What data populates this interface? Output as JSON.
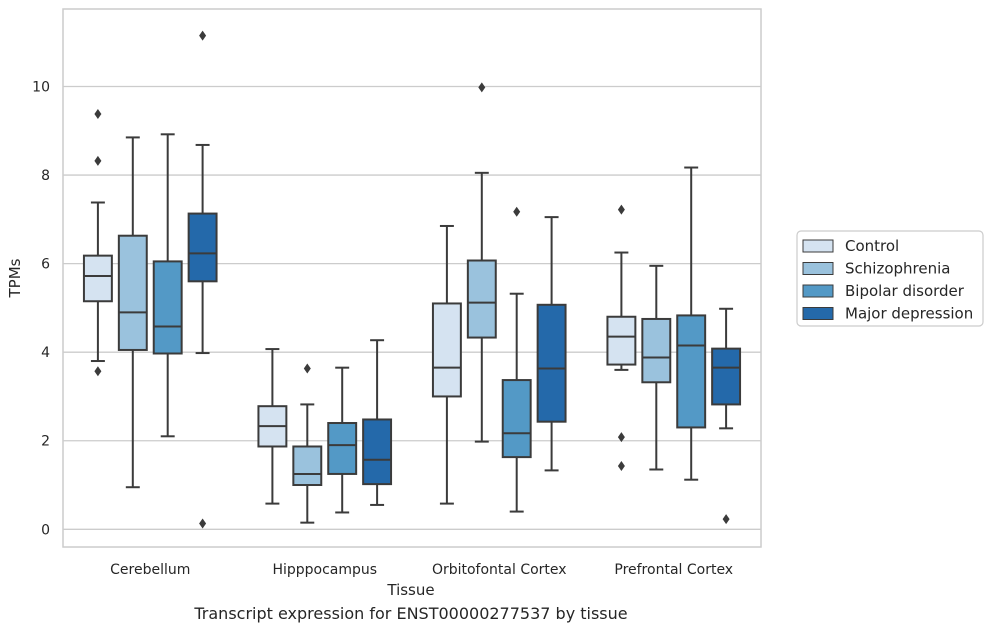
{
  "caption": "Transcript expression for ENST00000277537 by tissue",
  "chart_data": {
    "type": "box",
    "xlabel": "Tissue",
    "ylabel": "TPMs",
    "ylim": [
      -0.4,
      11.75
    ],
    "yticks": [
      0,
      2,
      4,
      6,
      8,
      10
    ],
    "grid": "horizontal",
    "legend_position": "right",
    "categories": [
      "Cerebellum",
      "Hipppocampus",
      "Orbitofontal Cortex",
      "Prefrontal Cortex"
    ],
    "series": [
      {
        "name": "Control",
        "color": "#d5e3f1",
        "boxes": [
          {
            "min": 3.8,
            "q1": 5.15,
            "median": 5.72,
            "q3": 6.18,
            "max": 7.38,
            "outliers": [
              9.38,
              8.32,
              3.57
            ]
          },
          {
            "min": 0.58,
            "q1": 1.87,
            "median": 2.33,
            "q3": 2.78,
            "max": 4.07,
            "outliers": []
          },
          {
            "min": 0.58,
            "q1": 3.0,
            "median": 3.65,
            "q3": 5.1,
            "max": 6.85,
            "outliers": []
          },
          {
            "min": 3.6,
            "q1": 3.72,
            "median": 4.35,
            "q3": 4.8,
            "max": 6.25,
            "outliers": [
              7.22,
              2.08,
              1.43
            ]
          }
        ]
      },
      {
        "name": "Schizophrenia",
        "color": "#9ac2dd",
        "boxes": [
          {
            "min": 0.95,
            "q1": 4.05,
            "median": 4.9,
            "q3": 6.63,
            "max": 8.85,
            "outliers": []
          },
          {
            "min": 0.15,
            "q1": 1.0,
            "median": 1.25,
            "q3": 1.87,
            "max": 2.82,
            "outliers": [
              3.63
            ]
          },
          {
            "min": 1.98,
            "q1": 4.33,
            "median": 5.12,
            "q3": 6.07,
            "max": 8.05,
            "outliers": [
              9.98
            ]
          },
          {
            "min": 1.35,
            "q1": 3.32,
            "median": 3.88,
            "q3": 4.75,
            "max": 5.95,
            "outliers": []
          }
        ]
      },
      {
        "name": "Bipolar disorder",
        "color": "#5399c6",
        "boxes": [
          {
            "min": 2.1,
            "q1": 3.97,
            "median": 4.58,
            "q3": 6.05,
            "max": 8.92,
            "outliers": []
          },
          {
            "min": 0.38,
            "q1": 1.25,
            "median": 1.9,
            "q3": 2.4,
            "max": 3.65,
            "outliers": []
          },
          {
            "min": 0.4,
            "q1": 1.63,
            "median": 2.17,
            "q3": 3.37,
            "max": 5.32,
            "outliers": [
              7.17
            ]
          },
          {
            "min": 1.12,
            "q1": 2.3,
            "median": 4.15,
            "q3": 4.83,
            "max": 8.17,
            "outliers": []
          }
        ]
      },
      {
        "name": "Major depression",
        "color": "#2469aa",
        "boxes": [
          {
            "min": 3.98,
            "q1": 5.6,
            "median": 6.23,
            "q3": 7.13,
            "max": 8.68,
            "outliers": [
              11.15,
              0.13
            ]
          },
          {
            "min": 0.55,
            "q1": 1.02,
            "median": 1.57,
            "q3": 2.48,
            "max": 4.27,
            "outliers": []
          },
          {
            "min": 1.33,
            "q1": 2.43,
            "median": 3.63,
            "q3": 5.07,
            "max": 7.05,
            "outliers": []
          },
          {
            "min": 2.28,
            "q1": 2.82,
            "median": 3.65,
            "q3": 4.08,
            "max": 4.98,
            "outliers": [
              0.23
            ]
          }
        ]
      }
    ]
  }
}
